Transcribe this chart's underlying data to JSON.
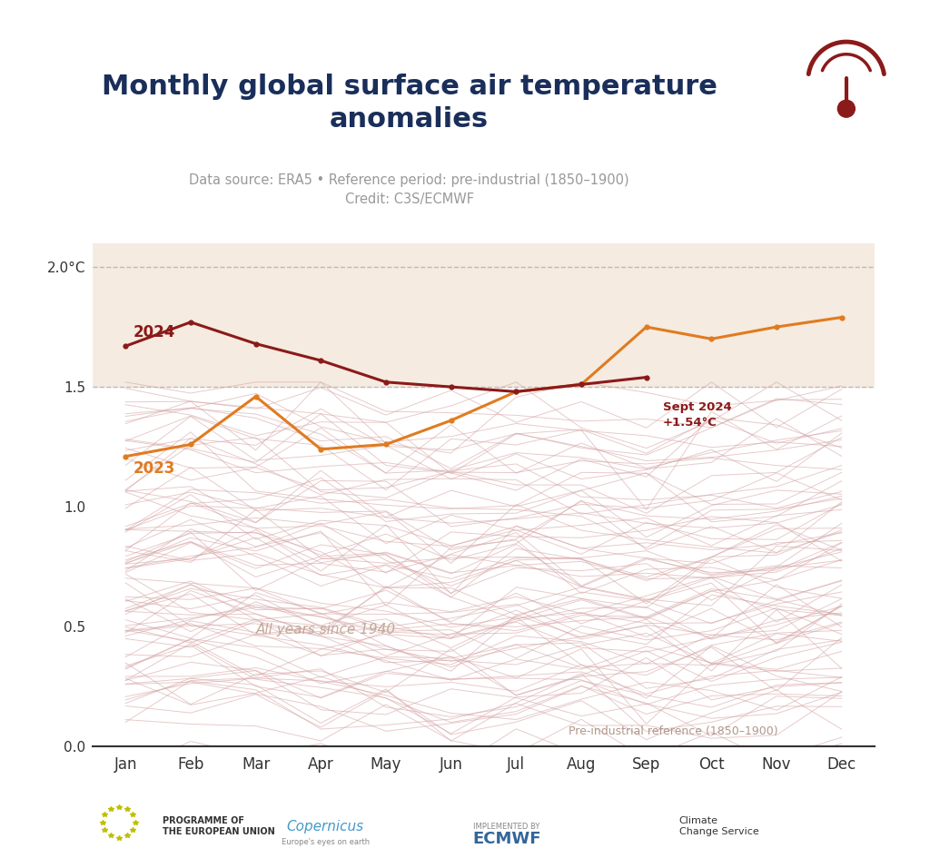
{
  "title": "Monthly global surface air temperature\nanomalies",
  "subtitle_line1": "Data source: ERA5 • Reference period: pre-industrial (1850–1900)",
  "subtitle_line2": "Credit: C3S/ECMWF",
  "title_color": "#1a2e5a",
  "subtitle_color": "#999999",
  "background_color": "#ffffff",
  "months": [
    "Jan",
    "Feb",
    "Mar",
    "Apr",
    "May",
    "Jun",
    "Jul",
    "Aug",
    "Sep",
    "Oct",
    "Nov",
    "Dec"
  ],
  "data_2024": [
    1.67,
    1.77,
    1.68,
    1.61,
    1.52,
    1.5,
    1.48,
    1.51,
    1.54,
    null,
    null,
    null
  ],
  "data_2023": [
    1.21,
    1.26,
    1.46,
    1.24,
    1.26,
    1.36,
    1.48,
    1.51,
    1.75,
    1.7,
    1.75,
    1.79
  ],
  "color_2024": "#8b1a1a",
  "color_2023": "#e07b20",
  "ylim": [
    0.0,
    2.1
  ],
  "yticks": [
    0.0,
    0.5,
    1.0,
    1.5,
    2.0
  ],
  "ytick_labels": [
    "0.0",
    "0.5",
    "1.0",
    "1.5",
    "2.0°C"
  ],
  "hline_15": 1.5,
  "hline_20": 2.0,
  "annotation_sept": "Sept 2024\n+1.54°C",
  "all_years_label": "All years since 1940",
  "preindustrial_label": "Pre-industrial reference (1850–1900)",
  "bg_shading_min": 1.5,
  "bg_shading_max": 2.1,
  "historical_color": "#d4a0a0",
  "historical_alpha": 0.55
}
